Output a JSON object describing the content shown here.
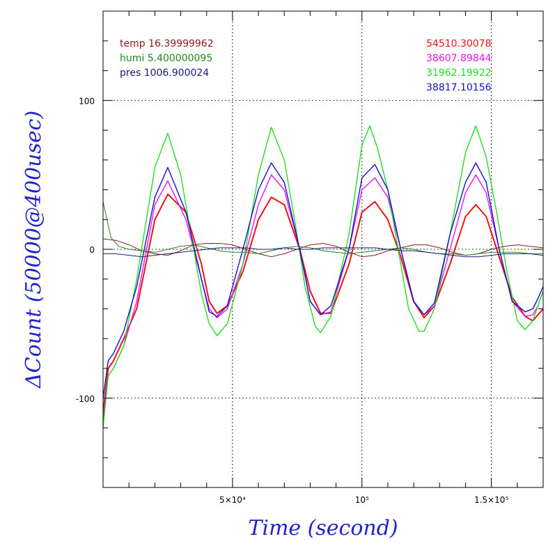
{
  "chart_data": {
    "type": "line",
    "xlabel": "Time (second)",
    "ylabel": "ΔCount (50000@400usec)",
    "xlim": [
      0,
      170000
    ],
    "ylim": [
      -160,
      160
    ],
    "grid": true,
    "x_ticks": [
      {
        "value": 50000,
        "label": "5×10⁴"
      },
      {
        "value": 100000,
        "label": "10⁵"
      },
      {
        "value": 150000,
        "label": "1.5×10⁵"
      }
    ],
    "y_ticks": [
      {
        "value": 100,
        "label": "100"
      },
      {
        "value": 0,
        "label": "0"
      },
      {
        "value": -100,
        "label": "-100"
      }
    ],
    "legend_left": [
      {
        "label": "temp 16.39999962",
        "color": "#8b1a1a"
      },
      {
        "label": "humi 5.400000095",
        "color": "#1a8a1a"
      },
      {
        "label": "pres 1006.900024",
        "color": "#1a1a80"
      }
    ],
    "legend_right": [
      {
        "label": "54510.30078",
        "color": "#ee1111"
      },
      {
        "label": "38607.89844",
        "color": "#ee11ee"
      },
      {
        "label": "31962.19922",
        "color": "#22dd22"
      },
      {
        "label": "38817.10156",
        "color": "#1111cc"
      }
    ],
    "series": [
      {
        "color": "#ee1111",
        "width": 2,
        "x": [
          0,
          2000,
          4000,
          8000,
          13000,
          20000,
          25000,
          32000,
          38000,
          41000,
          44000,
          48000,
          54000,
          60000,
          65000,
          70000,
          76000,
          80000,
          84000,
          88000,
          95000,
          100000,
          105000,
          110000,
          115000,
          120000,
          124000,
          128000,
          134000,
          140000,
          144000,
          148000,
          153000,
          158000,
          163000,
          166000,
          168000,
          170000
        ],
        "y": [
          -110,
          -80,
          -75,
          -60,
          -40,
          20,
          37,
          25,
          -10,
          -35,
          -43,
          -38,
          -15,
          20,
          35,
          30,
          0,
          -28,
          -43,
          -43,
          -10,
          25,
          32,
          20,
          -5,
          -35,
          -46,
          -38,
          -10,
          22,
          30,
          22,
          -5,
          -32,
          -45,
          -48,
          -44,
          -40
        ]
      },
      {
        "color": "#ee11ee",
        "width": 1.4,
        "x": [
          0,
          2000,
          4000,
          8000,
          13000,
          20000,
          25000,
          32000,
          38000,
          41000,
          44000,
          48000,
          54000,
          60000,
          65000,
          70000,
          76000,
          80000,
          84000,
          88000,
          95000,
          100000,
          105000,
          110000,
          115000,
          120000,
          124000,
          128000,
          134000,
          140000,
          144000,
          148000,
          153000,
          158000,
          163000,
          166000,
          168000,
          170000
        ],
        "y": [
          -115,
          -85,
          -80,
          -65,
          -35,
          30,
          46,
          20,
          -20,
          -40,
          -46,
          -40,
          -10,
          30,
          50,
          40,
          0,
          -35,
          -44,
          -42,
          0,
          40,
          48,
          35,
          0,
          -35,
          -44,
          -38,
          0,
          38,
          50,
          38,
          0,
          -35,
          -45,
          -44,
          -38,
          -28
        ]
      },
      {
        "color": "#22dd22",
        "width": 1.4,
        "x": [
          0,
          2000,
          4000,
          8000,
          13000,
          20000,
          25000,
          30000,
          34000,
          38000,
          41000,
          44000,
          48000,
          54000,
          60000,
          65000,
          70000,
          74000,
          78000,
          82000,
          84000,
          88000,
          95000,
          100000,
          103000,
          106000,
          110000,
          114000,
          118000,
          122000,
          124000,
          128000,
          134000,
          140000,
          144000,
          148000,
          152000,
          156000,
          160000,
          163000,
          166000,
          170000
        ],
        "y": [
          -120,
          -85,
          -80,
          -65,
          -20,
          55,
          78,
          50,
          10,
          -30,
          -50,
          -58,
          -50,
          -10,
          50,
          82,
          60,
          20,
          -25,
          -52,
          -56,
          -45,
          10,
          70,
          83,
          68,
          40,
          0,
          -40,
          -55,
          -55,
          -40,
          10,
          65,
          83,
          62,
          25,
          -15,
          -48,
          -54,
          -48,
          -28
        ]
      },
      {
        "color": "#1111cc",
        "width": 1.4,
        "x": [
          0,
          2000,
          4000,
          8000,
          13000,
          20000,
          25000,
          32000,
          38000,
          41000,
          44000,
          48000,
          54000,
          60000,
          65000,
          70000,
          76000,
          80000,
          84000,
          88000,
          95000,
          100000,
          105000,
          110000,
          115000,
          120000,
          124000,
          128000,
          134000,
          140000,
          144000,
          148000,
          153000,
          158000,
          163000,
          166000,
          168000,
          170000
        ],
        "y": [
          -100,
          -75,
          -70,
          -55,
          -25,
          35,
          55,
          25,
          -20,
          -42,
          -45,
          -38,
          0,
          40,
          58,
          45,
          0,
          -35,
          -44,
          -38,
          0,
          48,
          57,
          40,
          0,
          -35,
          -44,
          -36,
          10,
          45,
          58,
          45,
          0,
          -35,
          -42,
          -40,
          -33,
          -25
        ]
      },
      {
        "color": "#8b1a1a",
        "width": 1,
        "x": [
          0,
          5000,
          10000,
          15000,
          20000,
          25000,
          30000,
          35000,
          40000,
          45000,
          50000,
          55000,
          60000,
          65000,
          70000,
          75000,
          80000,
          85000,
          90000,
          95000,
          100000,
          105000,
          110000,
          115000,
          120000,
          125000,
          130000,
          135000,
          140000,
          145000,
          150000,
          155000,
          160000,
          165000,
          170000
        ],
        "y": [
          7,
          6,
          3,
          -1,
          -3,
          -4,
          -1,
          3,
          4,
          4,
          3,
          0,
          -3,
          -5,
          -3,
          0,
          3,
          4,
          2,
          -2,
          -5,
          -4,
          -1,
          1,
          3,
          3,
          1,
          -2,
          -4,
          -3,
          0,
          2,
          3,
          2,
          1
        ]
      },
      {
        "color": "#1a8a1a",
        "width": 1,
        "x": [
          0,
          1500,
          3000,
          6000,
          10000,
          15000,
          20000,
          25000,
          30000,
          35000,
          40000,
          45000,
          50000,
          55000,
          60000,
          65000,
          70000,
          75000,
          80000,
          85000,
          90000,
          95000,
          100000,
          105000,
          110000,
          115000,
          120000,
          125000,
          130000,
          135000,
          140000,
          145000,
          150000,
          155000,
          160000,
          165000,
          170000
        ],
        "y": [
          32,
          20,
          8,
          2,
          0,
          -1,
          -2,
          0,
          2,
          3,
          1,
          -1,
          -2,
          -2,
          -3,
          -1,
          1,
          2,
          1,
          -1,
          -2,
          -3,
          -2,
          -1,
          0,
          1,
          0,
          -2,
          -3,
          -3,
          -4,
          -3,
          -2,
          -2,
          -2,
          -3,
          -3
        ]
      },
      {
        "color": "#1a1a80",
        "width": 1,
        "x": [
          0,
          5000,
          10000,
          15000,
          20000,
          25000,
          30000,
          35000,
          40000,
          45000,
          50000,
          55000,
          60000,
          65000,
          70000,
          75000,
          80000,
          85000,
          90000,
          95000,
          100000,
          105000,
          110000,
          115000,
          120000,
          125000,
          130000,
          135000,
          140000,
          145000,
          150000,
          155000,
          160000,
          165000,
          170000
        ],
        "y": [
          -3,
          -3,
          -4,
          -5,
          -4,
          -3,
          -2,
          -1,
          0,
          1,
          1,
          1,
          0,
          0,
          1,
          0,
          0,
          1,
          1,
          1,
          1,
          1,
          0,
          -1,
          -1,
          -2,
          -3,
          -4,
          -5,
          -5,
          -4,
          -3,
          -3,
          -3,
          -4
        ]
      }
    ]
  }
}
